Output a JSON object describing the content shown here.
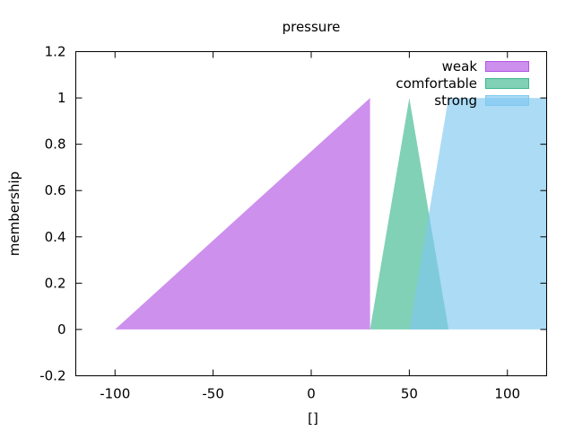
{
  "chart_data": {
    "type": "area",
    "title": "pressure",
    "xlabel": "[]",
    "ylabel": "membership",
    "xlim": [
      -120,
      120
    ],
    "ylim": [
      -0.2,
      1.2
    ],
    "xticks": [
      -100,
      -50,
      0,
      50,
      100
    ],
    "yticks": [
      -0.2,
      0,
      0.2,
      0.4,
      0.6,
      0.8,
      1,
      1.2
    ],
    "xtick_labels": [
      "-100",
      "-50",
      "0",
      "50",
      "100"
    ],
    "ytick_labels": [
      "-0.2",
      "0",
      "0.2",
      "0.4",
      "0.6",
      "0.8",
      "1",
      "1.2"
    ],
    "grid": false,
    "legend_position": "top-right",
    "series": [
      {
        "name": "weak",
        "color": "#b254e4",
        "points": [
          [
            -100,
            0
          ],
          [
            30,
            1
          ],
          [
            30,
            0
          ]
        ]
      },
      {
        "name": "comfortable",
        "color": "#3cb88e",
        "points": [
          [
            30,
            0
          ],
          [
            50,
            1
          ],
          [
            70,
            0
          ]
        ]
      },
      {
        "name": "strong",
        "color": "#7ec8ef",
        "points": [
          [
            50,
            0
          ],
          [
            70,
            1
          ],
          [
            120,
            1
          ],
          [
            120,
            0
          ]
        ]
      }
    ]
  }
}
